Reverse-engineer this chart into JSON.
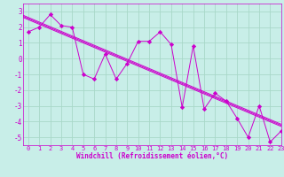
{
  "title": "",
  "xlabel": "Windchill (Refroidissement éolien,°C)",
  "background_color": "#c8eee8",
  "grid_color": "#a8d8c8",
  "line_color": "#cc00cc",
  "xlim": [
    -0.5,
    23
  ],
  "ylim": [
    -5.5,
    3.5
  ],
  "yticks": [
    -5,
    -4,
    -3,
    -2,
    -1,
    0,
    1,
    2,
    3
  ],
  "xticks": [
    0,
    1,
    2,
    3,
    4,
    5,
    6,
    7,
    8,
    9,
    10,
    11,
    12,
    13,
    14,
    15,
    16,
    17,
    18,
    19,
    20,
    21,
    22,
    23
  ],
  "data_x": [
    0,
    1,
    2,
    3,
    4,
    5,
    6,
    7,
    8,
    9,
    10,
    11,
    12,
    13,
    14,
    15,
    16,
    17,
    18,
    19,
    20,
    21,
    22,
    23
  ],
  "data_y": [
    1.7,
    2.0,
    2.8,
    2.1,
    2.0,
    -1.0,
    -1.3,
    0.3,
    -1.3,
    -0.3,
    1.1,
    1.1,
    1.7,
    0.9,
    -3.1,
    0.8,
    -3.2,
    -2.2,
    -2.7,
    -3.8,
    -5.0,
    -3.0,
    -5.3,
    -4.6
  ],
  "reg_color": "#cc00cc",
  "marker_size": 3,
  "line_width": 0.7,
  "tick_fontsize": 5.0,
  "label_fontsize": 5.5
}
